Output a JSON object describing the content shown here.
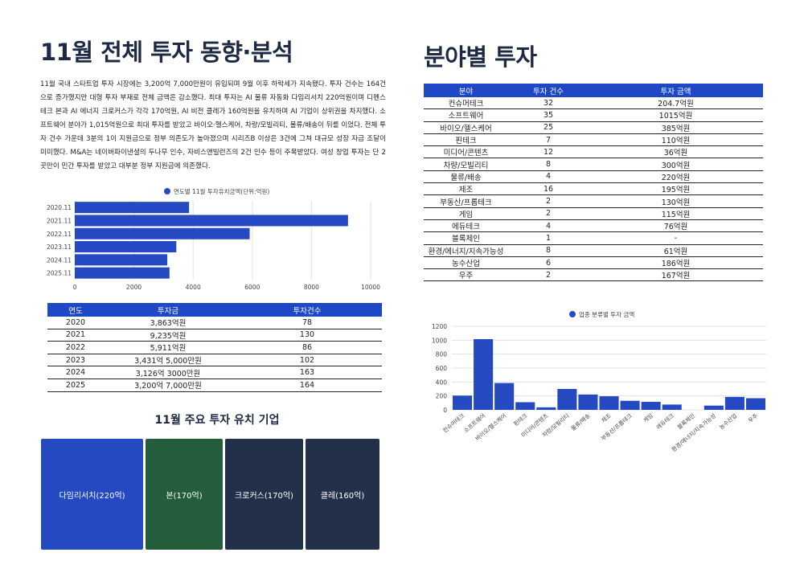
{
  "left": {
    "title": "11월  전체 투자 동향·분석",
    "paragraph": "11월 국내 스타트업 투자 시장에는 3,200억 7,000만원이 유입되며 9월 이후 하락세가 지속됐다. 투자 건수는 164건으로 증가했지만 대형 투자 부재로 전체 금액은 감소했다. 최대 투자는 AI 물류 자동화 다임리서치 220억원이며 디펜스테크 본과 AI 에너지 크로커스가 각각 170억원, AI 비전 클레가 160억원을 유치하며 AI 기업이 상위권을 차지했다. 소프트웨어 분야가 1,015억원으로 최대 투자를 받았고 바이오·헬스케어, 차량/모빌리티, 물류/배송이 뒤를 이었다. 전체 투자 건수 가운데 3분의 1이 지원금으로 정부 의존도가 높아졌으며 시리즈B 이상은 3건에 그쳐 대규모 성장 자금 조달이 미미했다. M&A는 네이버파이낸셜의 두나무 인수, 자비스앤빌런즈의 2건 인수 등이 주목받았다. 여성 창업 투자는 단 2곳만이 민간 투자를 받았고 대부분 정부 지원금에 의존했다."
  },
  "year_table": {
    "headers": [
      "연도",
      "투자금",
      "투자건수"
    ],
    "rows": [
      [
        "2020",
        "3,863억원",
        "78"
      ],
      [
        "2021",
        "9,235억원",
        "130"
      ],
      [
        "2022",
        "5,911억원",
        "86"
      ],
      [
        "2023",
        "3,431억 5,000만원",
        "102"
      ],
      [
        "2024",
        "3,126억 3000만원",
        "163"
      ],
      [
        "2025",
        "3,200억 7,000만원",
        "164"
      ]
    ]
  },
  "companies": {
    "title": "11월  주요 투자 유치 기업",
    "tiles": [
      {
        "label": "다임리서치(220억)",
        "color": "#2449c0"
      },
      {
        "label": "본(170억)",
        "color": "#235d3b"
      },
      {
        "label": "크로커스(170억)",
        "color": "#23304a"
      },
      {
        "label": "클레(160억)",
        "color": "#23304a"
      }
    ]
  },
  "right": {
    "title": "분야별 투자"
  },
  "sector_table": {
    "headers": [
      "분야",
      "투자 건수",
      "투자 금액"
    ],
    "rows": [
      [
        "컨슈머테크",
        "32",
        "204.7억원"
      ],
      [
        "소프트웨어",
        "35",
        "1015억원"
      ],
      [
        "바이오/헬스케어",
        "25",
        "385억원"
      ],
      [
        "핀테크",
        "7",
        "110억원"
      ],
      [
        "미디어/콘텐츠",
        "12",
        "36억원"
      ],
      [
        "차량/모빌리티",
        "8",
        "300억원"
      ],
      [
        "물류/배송",
        "4",
        "220억원"
      ],
      [
        "제조",
        "16",
        "195억원"
      ],
      [
        "부동산/프롭테크",
        "2",
        "130억원"
      ],
      [
        "게임",
        "2",
        "115억원"
      ],
      [
        "에듀테크",
        "4",
        "76억원"
      ],
      [
        "블록체인",
        "1",
        "-"
      ],
      [
        "환경/에너지/지속가능성",
        "8",
        "61억원"
      ],
      [
        "농수산업",
        "6",
        "186억원"
      ],
      [
        "우주",
        "2",
        "167억원"
      ]
    ]
  },
  "colors": {
    "bar": "#2449c0",
    "header": "#1f48c7",
    "grid": "#e3e3e3"
  },
  "chart_data": [
    {
      "type": "bar",
      "orientation": "horizontal",
      "legend": "연도별 11월 투자유치금액(단위:억원)",
      "legend_position": "top",
      "categories": [
        "2020.11",
        "2021.11",
        "2022.11",
        "2023.11",
        "2024.11",
        "2025.11"
      ],
      "values": [
        3863,
        9235,
        5911,
        3431.5,
        3126.3,
        3200.7
      ],
      "xlim": [
        0,
        10000
      ],
      "xticks": [
        "0",
        "2000",
        "4000",
        "6000",
        "8000",
        "10000"
      ],
      "grid": true
    },
    {
      "type": "bar",
      "orientation": "vertical",
      "legend": "업종 분류별 투자 금액",
      "legend_position": "top",
      "categories": [
        "컨슈머테크",
        "소프트웨어",
        "바이오/헬스케어",
        "핀테크",
        "미디어/콘텐츠",
        "차량/모빌리티",
        "물류/배송",
        "제조",
        "부동산/프롭테크",
        "게임",
        "에듀테크",
        "블록체인",
        "환경/에너지/지속가능성",
        "농수산업",
        "우주"
      ],
      "values": [
        204.7,
        1015,
        385,
        110,
        36,
        300,
        220,
        195,
        130,
        115,
        76,
        0,
        61,
        186,
        167
      ],
      "ylim": [
        0,
        1200
      ],
      "yticks": [
        "0",
        "200",
        "400",
        "600",
        "800",
        "1000",
        "1200"
      ],
      "grid": true
    }
  ]
}
